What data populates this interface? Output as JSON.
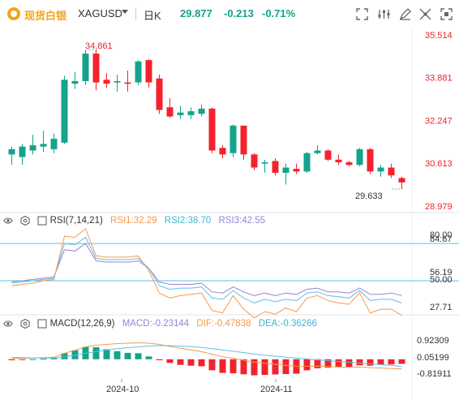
{
  "header": {
    "logo_text": "现货白银",
    "symbol": "XAGUSD",
    "period": "日K",
    "price": "29.877",
    "change": "-0.213",
    "change_pct": "-0.71%"
  },
  "toolbar": {
    "icons": [
      "fullscreen-icon",
      "settings-sliders-icon",
      "draw-icon",
      "indicator-icon",
      "expand-icon",
      "close-icon"
    ]
  },
  "price_axis": [
    "35.514",
    "33.881",
    "32.247",
    "30.613",
    "28.979"
  ],
  "price_marks": {
    "high": "34.861",
    "low": "29.633"
  },
  "rsi": {
    "legend": {
      "title": "RSI(7,14,21)",
      "rsi1": "RSI1:32.29",
      "rsi2": "RSI2:38.70",
      "rsi3": "RSI3:42.55"
    },
    "axis": [
      "80.00",
      "84.67",
      "56.19",
      "50.00",
      "27.71"
    ]
  },
  "macd": {
    "legend": {
      "title": "MACD(12,26,9)",
      "macd": "MACD:-0.23144",
      "dif": "DIF:-0.47838",
      "dea": "DEA:-0.36266"
    },
    "axis": [
      "0.92309",
      "0.05199",
      "-0.81911"
    ]
  },
  "x_axis": [
    "2024-10",
    "2024-11"
  ],
  "colors": {
    "up": "#14a38b",
    "down": "#f2232d",
    "rsi1": "#f59a4b",
    "rsi2": "#5cc2e6",
    "rsi3": "#9a82d6",
    "accent": "#f2a51a"
  },
  "chart_data": {
    "type": "candlestick",
    "candles": [
      {
        "o": 30.95,
        "h": 31.25,
        "l": 30.55,
        "c": 31.15
      },
      {
        "o": 30.85,
        "h": 31.35,
        "l": 30.55,
        "c": 31.25
      },
      {
        "o": 31.1,
        "h": 31.7,
        "l": 30.95,
        "c": 31.3
      },
      {
        "o": 31.25,
        "h": 31.85,
        "l": 31.05,
        "c": 31.35
      },
      {
        "o": 31.15,
        "h": 31.75,
        "l": 31.0,
        "c": 31.55
      },
      {
        "o": 31.4,
        "h": 33.95,
        "l": 31.35,
        "c": 33.8
      },
      {
        "o": 33.65,
        "h": 34.1,
        "l": 33.45,
        "c": 33.75
      },
      {
        "o": 33.75,
        "h": 34.95,
        "l": 33.6,
        "c": 34.8
      },
      {
        "o": 34.8,
        "h": 34.95,
        "l": 33.4,
        "c": 33.7
      },
      {
        "o": 33.8,
        "h": 34.05,
        "l": 33.5,
        "c": 33.65
      },
      {
        "o": 33.7,
        "h": 34.0,
        "l": 33.35,
        "c": 33.75
      },
      {
        "o": 33.7,
        "h": 34.15,
        "l": 33.35,
        "c": 33.65
      },
      {
        "o": 33.7,
        "h": 34.55,
        "l": 33.6,
        "c": 34.5
      },
      {
        "o": 34.55,
        "h": 34.6,
        "l": 33.5,
        "c": 33.7
      },
      {
        "o": 33.85,
        "h": 34.0,
        "l": 32.5,
        "c": 32.65
      },
      {
        "o": 32.75,
        "h": 33.1,
        "l": 32.35,
        "c": 32.4
      },
      {
        "o": 32.45,
        "h": 32.8,
        "l": 32.3,
        "c": 32.55
      },
      {
        "o": 32.45,
        "h": 32.75,
        "l": 32.3,
        "c": 32.6
      },
      {
        "o": 32.5,
        "h": 32.85,
        "l": 32.4,
        "c": 32.7
      },
      {
        "o": 32.7,
        "h": 32.75,
        "l": 31.0,
        "c": 31.1
      },
      {
        "o": 31.2,
        "h": 31.3,
        "l": 30.8,
        "c": 30.95
      },
      {
        "o": 31.0,
        "h": 32.1,
        "l": 30.85,
        "c": 32.05
      },
      {
        "o": 32.05,
        "h": 32.05,
        "l": 30.75,
        "c": 30.95
      },
      {
        "o": 30.95,
        "h": 31.0,
        "l": 30.35,
        "c": 30.45
      },
      {
        "o": 30.6,
        "h": 30.75,
        "l": 30.25,
        "c": 30.65
      },
      {
        "o": 30.7,
        "h": 30.8,
        "l": 30.15,
        "c": 30.25
      },
      {
        "o": 30.25,
        "h": 30.6,
        "l": 29.8,
        "c": 30.45
      },
      {
        "o": 30.4,
        "h": 30.6,
        "l": 30.2,
        "c": 30.3
      },
      {
        "o": 30.3,
        "h": 31.05,
        "l": 30.25,
        "c": 31.0
      },
      {
        "o": 31.0,
        "h": 31.3,
        "l": 30.95,
        "c": 31.1
      },
      {
        "o": 31.1,
        "h": 31.15,
        "l": 30.7,
        "c": 30.75
      },
      {
        "o": 30.75,
        "h": 30.95,
        "l": 30.55,
        "c": 30.65
      },
      {
        "o": 30.65,
        "h": 30.7,
        "l": 30.5,
        "c": 30.55
      },
      {
        "o": 30.55,
        "h": 31.2,
        "l": 30.5,
        "c": 31.15
      },
      {
        "o": 31.15,
        "h": 31.2,
        "l": 30.2,
        "c": 30.3
      },
      {
        "o": 30.3,
        "h": 30.55,
        "l": 30.1,
        "c": 30.45
      },
      {
        "o": 30.45,
        "h": 30.6,
        "l": 30.05,
        "c": 30.15
      },
      {
        "o": 30.05,
        "h": 30.1,
        "l": 29.63,
        "c": 29.88
      }
    ],
    "rsi1": [
      46,
      47,
      48,
      50,
      51,
      86,
      85,
      92,
      70,
      69,
      69,
      69,
      70,
      58,
      40,
      36,
      38,
      39,
      40,
      26,
      24,
      38,
      27,
      20,
      25,
      23,
      28,
      25,
      36,
      38,
      34,
      32,
      31,
      40,
      24,
      27,
      27,
      22
    ],
    "rsi2": [
      48,
      49,
      50,
      51,
      52,
      80,
      79,
      85,
      68,
      67,
      67,
      67,
      68,
      60,
      46,
      43,
      44,
      44,
      45,
      36,
      35,
      42,
      36,
      32,
      35,
      33,
      35,
      34,
      40,
      41,
      38,
      37,
      36,
      42,
      34,
      35,
      35,
      32
    ],
    "rsi3": [
      49,
      50,
      51,
      52,
      53,
      75,
      74,
      80,
      66,
      65,
      65,
      65,
      66,
      60,
      49,
      47,
      47,
      47,
      48,
      41,
      40,
      45,
      41,
      38,
      40,
      38,
      40,
      39,
      43,
      44,
      41,
      41,
      40,
      44,
      39,
      39,
      40,
      38
    ],
    "macd_hist": [
      -0.05,
      -0.02,
      0.0,
      0.03,
      0.06,
      0.3,
      0.45,
      0.62,
      0.6,
      0.5,
      0.4,
      0.32,
      0.3,
      0.14,
      -0.05,
      -0.18,
      -0.28,
      -0.32,
      -0.35,
      -0.55,
      -0.68,
      -0.7,
      -0.75,
      -0.8,
      -0.78,
      -0.76,
      -0.74,
      -0.72,
      -0.55,
      -0.45,
      -0.42,
      -0.4,
      -0.38,
      -0.3,
      -0.32,
      -0.28,
      -0.26,
      -0.23
    ],
    "macd_dif": [
      0.05,
      0.05,
      0.06,
      0.08,
      0.1,
      0.3,
      0.45,
      0.62,
      0.7,
      0.74,
      0.78,
      0.8,
      0.82,
      0.8,
      0.74,
      0.64,
      0.55,
      0.46,
      0.38,
      0.25,
      0.12,
      0.05,
      -0.05,
      -0.14,
      -0.2,
      -0.25,
      -0.3,
      -0.34,
      -0.35,
      -0.34,
      -0.36,
      -0.38,
      -0.4,
      -0.39,
      -0.42,
      -0.44,
      -0.46,
      -0.48
    ],
    "macd_dea": [
      0.08,
      0.08,
      0.07,
      0.07,
      0.07,
      0.12,
      0.2,
      0.3,
      0.38,
      0.46,
      0.53,
      0.58,
      0.62,
      0.66,
      0.68,
      0.68,
      0.66,
      0.63,
      0.59,
      0.53,
      0.46,
      0.4,
      0.33,
      0.26,
      0.2,
      0.15,
      0.1,
      0.05,
      0.01,
      -0.03,
      -0.07,
      -0.11,
      -0.15,
      -0.19,
      -0.23,
      -0.27,
      -0.31,
      -0.36
    ],
    "ylim_price": [
      28.979,
      35.514
    ],
    "ylim_rsi": [
      27.71,
      84.67
    ],
    "ylim_macd": [
      -0.81911,
      0.92309
    ],
    "rsi_levels": [
      80,
      50
    ]
  }
}
